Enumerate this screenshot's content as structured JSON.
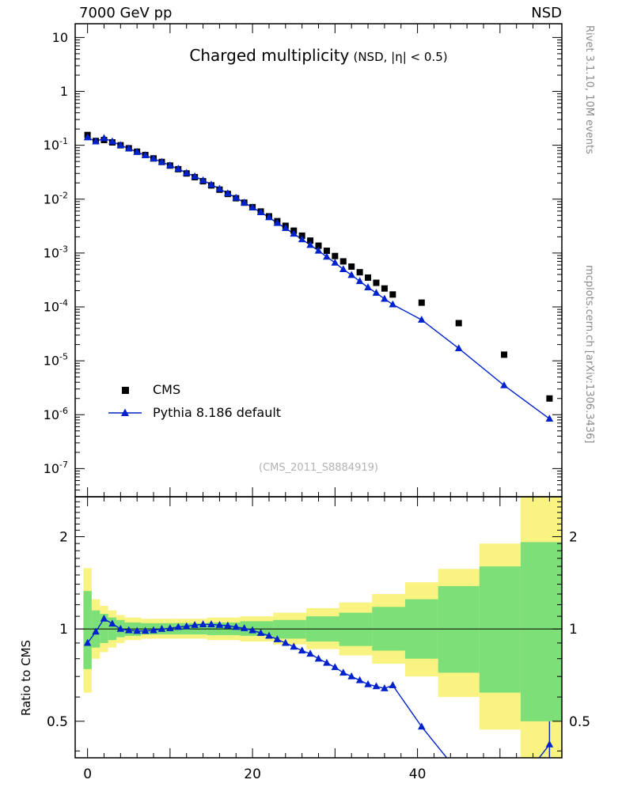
{
  "header": {
    "left": "7000 GeV pp",
    "right": "NSD"
  },
  "title": {
    "main": "Charged multiplicity",
    "condition": "(NSD, |η| < 0.5)"
  },
  "watermark": "(CMS_2011_S8884919)",
  "side_notes": {
    "right_top": "Rivet 3.1.10,  10M events",
    "right_bottom": "mcplots.cern.ch [arXiv:1306.3436]"
  },
  "legend": {
    "items": [
      {
        "label": "CMS",
        "marker": "square",
        "color_key": "cms"
      },
      {
        "label": "Pythia 8.186 default",
        "marker": "triangle-line",
        "color_key": "pythia"
      }
    ]
  },
  "colors": {
    "cms": "#000000",
    "pythia": "#0022cc",
    "band_yellow": "#f9f381",
    "band_green": "#7ddf77",
    "frame": "#000000",
    "watermark": "#b3b3b3",
    "side_note": "#8c8c8c"
  },
  "chart_data": {
    "type": "line",
    "title": "Charged multiplicity (NSD, |η| < 0.5)",
    "xlabel": "",
    "x_range": [
      -1.5,
      57.5
    ],
    "x_tick_labels": [
      0,
      20,
      40
    ],
    "x_major_step": 10,
    "x_minor_step": 2,
    "x_values": [
      0,
      1,
      2,
      3,
      4,
      5,
      6,
      7,
      8,
      9,
      10,
      11,
      12,
      13,
      14,
      15,
      16,
      17,
      18,
      19,
      20,
      21,
      22,
      23,
      24,
      25,
      26,
      27,
      28,
      29,
      30,
      31,
      32,
      33,
      34,
      35,
      36,
      37,
      40.5,
      45,
      50.5,
      56
    ],
    "main_panel": {
      "yscale": "log",
      "y_range": [
        3e-08,
        18
      ],
      "y_tick_exponents": [
        1,
        0,
        -1,
        -2,
        -3,
        -4,
        -5,
        -6,
        -7
      ],
      "series": [
        {
          "name": "CMS",
          "marker": "square",
          "color_key": "cms",
          "y": [
            0.155,
            0.12,
            0.125,
            0.113,
            0.1,
            0.088,
            0.076,
            0.066,
            0.057,
            0.049,
            0.042,
            0.036,
            0.03,
            0.0256,
            0.0215,
            0.018,
            0.015,
            0.0125,
            0.0104,
            0.0086,
            0.0071,
            0.0059,
            0.0048,
            0.0039,
            0.0032,
            0.0026,
            0.0021,
            0.0017,
            0.00137,
            0.0011,
            0.00088,
            0.0007,
            0.00056,
            0.00044,
            0.00035,
            0.00028,
            0.00022,
            0.00017,
            0.00012,
            5e-05,
            1.3e-05,
            2e-06
          ]
        },
        {
          "name": "Pythia 8.186 default",
          "marker": "triangle",
          "line": true,
          "color_key": "pythia",
          "y": [
            0.1395,
            0.1176,
            0.135,
            0.1175,
            0.1,
            0.0871,
            0.0749,
            0.065,
            0.0564,
            0.049,
            0.0422,
            0.0365,
            0.0306,
            0.0264,
            0.0223,
            0.0186,
            0.0155,
            0.0128,
            0.0106,
            0.0086,
            0.007,
            0.0057,
            0.0046,
            0.0036,
            0.0029,
            0.00228,
            0.00179,
            0.00141,
            0.0011,
            0.00085,
            0.00066,
            0.0005,
            0.00039,
            0.0003,
            0.00023,
            0.000182,
            0.000141,
            0.000111,
            5.76e-05,
            1.7e-05,
            3.5e-06,
            8.4e-07
          ]
        }
      ]
    },
    "ratio_panel": {
      "ylabel": "Ratio to CMS",
      "yscale": "log",
      "y_range": [
        0.38,
        2.7
      ],
      "y_tick_labels": [
        0.5,
        1,
        2
      ],
      "y_minor_ticks": [
        0.4,
        0.6,
        0.7,
        0.8,
        0.9,
        1.1,
        1.2,
        1.3,
        1.4,
        1.5,
        1.6,
        1.7,
        1.8,
        1.9,
        2.1,
        2.2,
        2.3,
        2.4,
        2.5,
        2.6
      ],
      "reference_line": 1,
      "bands": {
        "yellow": [
          [
            -0.5,
            0.5,
            0.62,
            1.58
          ],
          [
            0.5,
            1.5,
            0.8,
            1.25
          ],
          [
            1.5,
            2.5,
            0.84,
            1.19
          ],
          [
            2.5,
            3.5,
            0.87,
            1.15
          ],
          [
            3.5,
            4.5,
            0.9,
            1.11
          ],
          [
            4.5,
            6.5,
            0.92,
            1.09
          ],
          [
            6.5,
            10.5,
            0.93,
            1.08
          ],
          [
            10.5,
            14.5,
            0.93,
            1.08
          ],
          [
            14.5,
            18.5,
            0.92,
            1.09
          ],
          [
            18.5,
            22.5,
            0.91,
            1.1
          ],
          [
            22.5,
            26.5,
            0.89,
            1.13
          ],
          [
            26.5,
            30.5,
            0.86,
            1.17
          ],
          [
            30.5,
            34.5,
            0.82,
            1.22
          ],
          [
            34.5,
            38.5,
            0.77,
            1.3
          ],
          [
            38.5,
            42.5,
            0.7,
            1.42
          ],
          [
            42.5,
            47.5,
            0.6,
            1.57
          ],
          [
            47.5,
            52.5,
            0.47,
            1.9
          ],
          [
            52.5,
            57.5,
            0.36,
            2.7
          ]
        ],
        "green": [
          [
            -0.5,
            0.5,
            0.74,
            1.33
          ],
          [
            0.5,
            1.5,
            0.87,
            1.15
          ],
          [
            1.5,
            2.5,
            0.9,
            1.12
          ],
          [
            2.5,
            3.5,
            0.92,
            1.09
          ],
          [
            3.5,
            4.5,
            0.94,
            1.07
          ],
          [
            4.5,
            6.5,
            0.95,
            1.05
          ],
          [
            6.5,
            10.5,
            0.96,
            1.045
          ],
          [
            10.5,
            14.5,
            0.96,
            1.045
          ],
          [
            14.5,
            18.5,
            0.955,
            1.05
          ],
          [
            18.5,
            22.5,
            0.95,
            1.06
          ],
          [
            22.5,
            26.5,
            0.93,
            1.07
          ],
          [
            26.5,
            30.5,
            0.91,
            1.1
          ],
          [
            30.5,
            34.5,
            0.88,
            1.13
          ],
          [
            34.5,
            38.5,
            0.85,
            1.18
          ],
          [
            38.5,
            42.5,
            0.8,
            1.25
          ],
          [
            42.5,
            47.5,
            0.72,
            1.38
          ],
          [
            47.5,
            52.5,
            0.62,
            1.6
          ],
          [
            52.5,
            57.5,
            0.5,
            1.92
          ]
        ]
      },
      "series": [
        {
          "name": "Pythia 8.186 default / CMS",
          "marker": "triangle",
          "line": true,
          "color_key": "pythia",
          "y": [
            0.9,
            0.98,
            1.08,
            1.04,
            1.0,
            0.99,
            0.985,
            0.985,
            0.99,
            1.0,
            1.005,
            1.015,
            1.02,
            1.03,
            1.035,
            1.035,
            1.03,
            1.025,
            1.015,
            1.005,
            0.99,
            0.97,
            0.95,
            0.925,
            0.9,
            0.875,
            0.85,
            0.83,
            0.8,
            0.775,
            0.75,
            0.72,
            0.7,
            0.68,
            0.66,
            0.65,
            0.64,
            0.655,
            0.48,
            0.34,
            0.27,
            0.42
          ],
          "last_point_err": {
            "lo": 0.055,
            "hi": 0.08
          }
        }
      ]
    }
  }
}
